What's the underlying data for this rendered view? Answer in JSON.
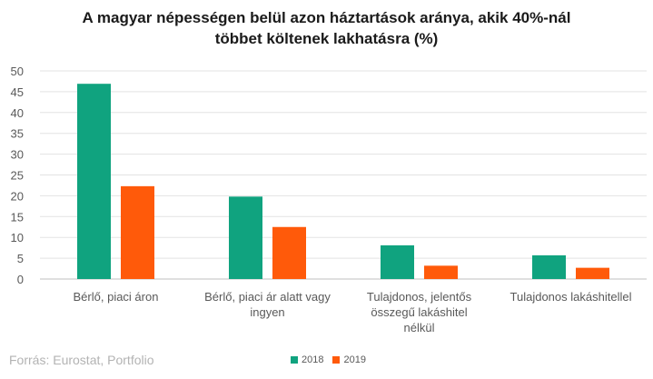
{
  "chart_data": {
    "type": "bar",
    "title_line1": "A magyar népességen belül azon háztartások aránya, akik 40%-nál",
    "title_line2": "többet költenek lakhatásra (%)",
    "categories": [
      [
        "Bérlő, piaci áron"
      ],
      [
        "Bérlő, piaci ár alatt vagy",
        "ingyen"
      ],
      [
        "Tulajdonos, jelentős",
        "összegű  lakáshitel",
        "nélkül"
      ],
      [
        "Tulajdonos lakáshitellel"
      ]
    ],
    "series": [
      {
        "name": "2018",
        "color": "#10a37f",
        "values": [
          46.9,
          19.8,
          8.1,
          5.7
        ]
      },
      {
        "name": "2019",
        "color": "#ff5a0a",
        "values": [
          22.3,
          12.5,
          3.2,
          2.7
        ]
      }
    ],
    "yticks": [
      0,
      5,
      10,
      15,
      20,
      25,
      30,
      35,
      40,
      45,
      50
    ],
    "ylim": [
      0,
      50
    ],
    "grid": true,
    "legend_position": "bottom"
  },
  "source": "Forrás: Eurostat, Portfolio"
}
